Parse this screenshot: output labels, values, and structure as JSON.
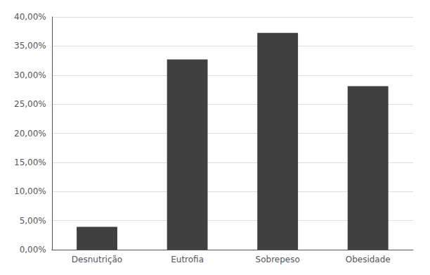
{
  "chart_data": {
    "type": "bar",
    "categories": [
      "Desnutrição",
      "Eutrofia",
      "Sobrepeso",
      "Obesidade"
    ],
    "values": [
      0.0392,
      0.3268,
      0.3725,
      0.281
    ],
    "color": "#404040",
    "ylim": [
      0,
      0.4
    ],
    "yticks": [
      {
        "value": 0.0,
        "label": "0,00%"
      },
      {
        "value": 0.05,
        "label": "5,00%"
      },
      {
        "value": 0.1,
        "label": "10,00%"
      },
      {
        "value": 0.15,
        "label": "15,00%"
      },
      {
        "value": 0.2,
        "label": "20,00%"
      },
      {
        "value": 0.25,
        "label": "25,00%"
      },
      {
        "value": 0.3,
        "label": "30,00%"
      },
      {
        "value": 0.35,
        "label": "35,00%"
      },
      {
        "value": 0.4,
        "label": "40,00%"
      }
    ],
    "grid": true
  }
}
